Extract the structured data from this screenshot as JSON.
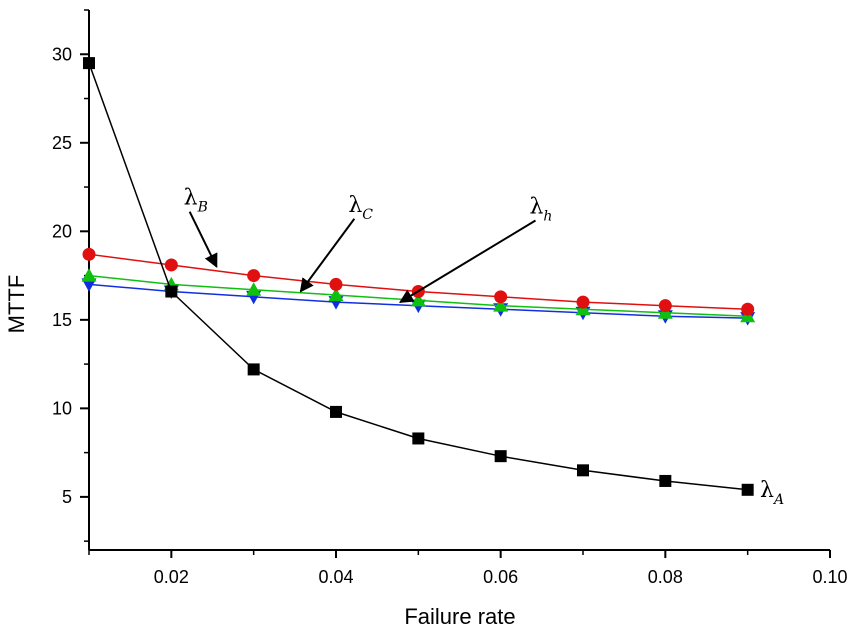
{
  "chart_data": {
    "type": "line",
    "title": "",
    "xlabel": "Failure rate",
    "ylabel": "MTTF",
    "xlim": [
      0.01,
      0.1
    ],
    "ylim": [
      2.0,
      32.5
    ],
    "x_ticks": [
      0.02,
      0.04,
      0.06,
      0.08,
      0.1
    ],
    "x_tick_labels": [
      "0.02",
      "0.04",
      "0.06",
      "0.08",
      "0.10"
    ],
    "y_ticks": [
      5,
      10,
      15,
      20,
      25,
      30
    ],
    "y_tick_labels": [
      "5",
      "10",
      "15",
      "20",
      "25",
      "30"
    ],
    "grid": false,
    "x": [
      0.01,
      0.02,
      0.03,
      0.04,
      0.05,
      0.06,
      0.07,
      0.08,
      0.09
    ],
    "series": [
      {
        "color": "#000000",
        "marker": "square",
        "values": [
          29.5,
          16.6,
          12.2,
          9.8,
          8.3,
          7.3,
          6.5,
          5.9,
          5.4
        ]
      },
      {
        "color": "#e01010",
        "marker": "circle",
        "values": [
          18.7,
          18.1,
          17.5,
          17.0,
          16.6,
          16.3,
          16.0,
          15.8,
          15.6
        ]
      },
      {
        "color": "#10c010",
        "marker": "triangle-up",
        "values": [
          17.5,
          17.0,
          16.7,
          16.4,
          16.1,
          15.8,
          15.6,
          15.4,
          15.2
        ]
      },
      {
        "color": "#1030e0",
        "marker": "triangle-down",
        "values": [
          17.0,
          16.6,
          16.3,
          16.0,
          15.8,
          15.6,
          15.4,
          15.2,
          15.1
        ]
      }
    ],
    "annotations": [
      {
        "main": "λ",
        "sub": "A",
        "x": 0.0915,
        "y": 5.4
      },
      {
        "main": "λ",
        "sub": "B",
        "x": 0.0215,
        "y": 21.9,
        "arrow_to": [
          0.0255,
          18.0
        ]
      },
      {
        "main": "λ",
        "sub": "C",
        "x": 0.0415,
        "y": 21.5,
        "arrow_to": [
          0.0357,
          16.6
        ]
      },
      {
        "main": "λ",
        "sub": "h",
        "x": 0.0635,
        "y": 21.4,
        "arrow_to": [
          0.0478,
          16.0
        ]
      }
    ]
  }
}
